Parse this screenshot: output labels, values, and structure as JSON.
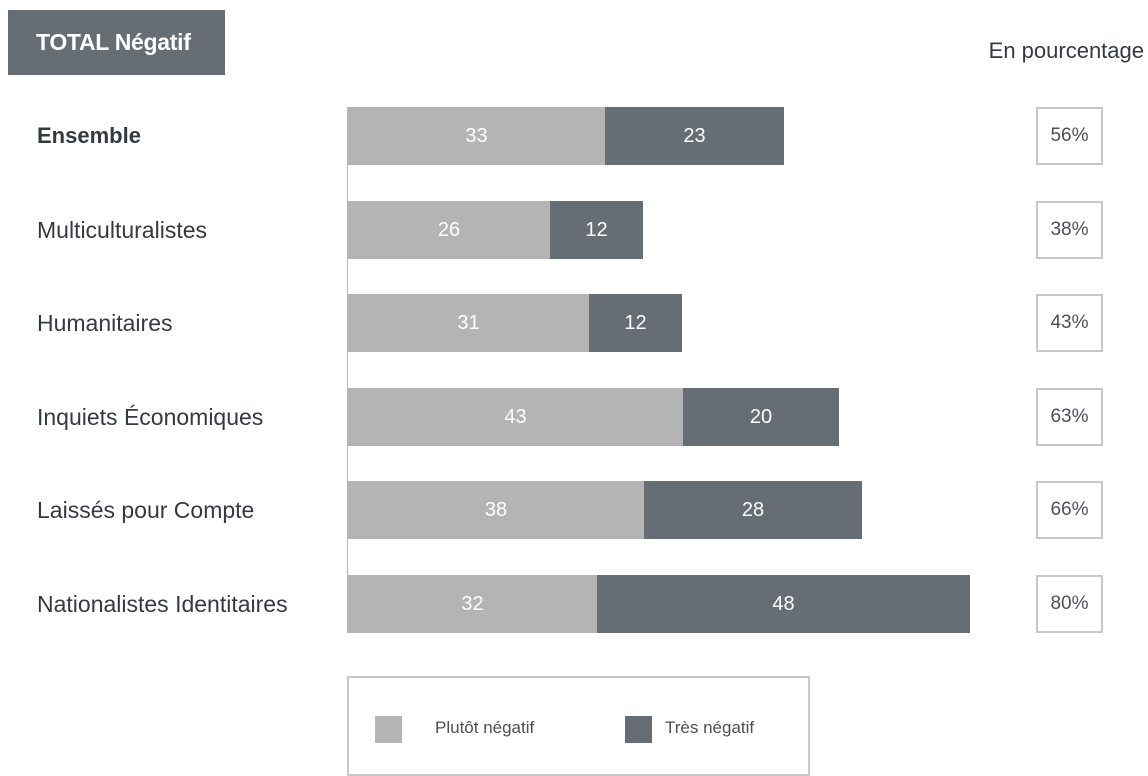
{
  "header": {
    "title": "TOTAL Négatif",
    "unit_note": "En pourcentage"
  },
  "colors": {
    "plutot": "#b4b4b4",
    "tres": "#666d75",
    "title_bg": "#666d75"
  },
  "chart_data": {
    "type": "bar",
    "orientation": "horizontal",
    "stacked": true,
    "title": "TOTAL Négatif",
    "xlim": [
      0,
      100
    ],
    "grid": false,
    "legend_position": "bottom",
    "categories": [
      "Ensemble",
      "Multiculturalistes",
      "Humanitaires",
      "Inquiets Économiques",
      "Laissés pour Compte",
      "Nationalistes Identitaires"
    ],
    "series": [
      {
        "name": "Plutôt négatif",
        "values": [
          33,
          26,
          31,
          43,
          38,
          32
        ]
      },
      {
        "name": "Très négatif",
        "values": [
          23,
          12,
          12,
          20,
          28,
          48
        ]
      }
    ],
    "totals": [
      "56%",
      "38%",
      "43%",
      "63%",
      "66%",
      "80%"
    ]
  }
}
